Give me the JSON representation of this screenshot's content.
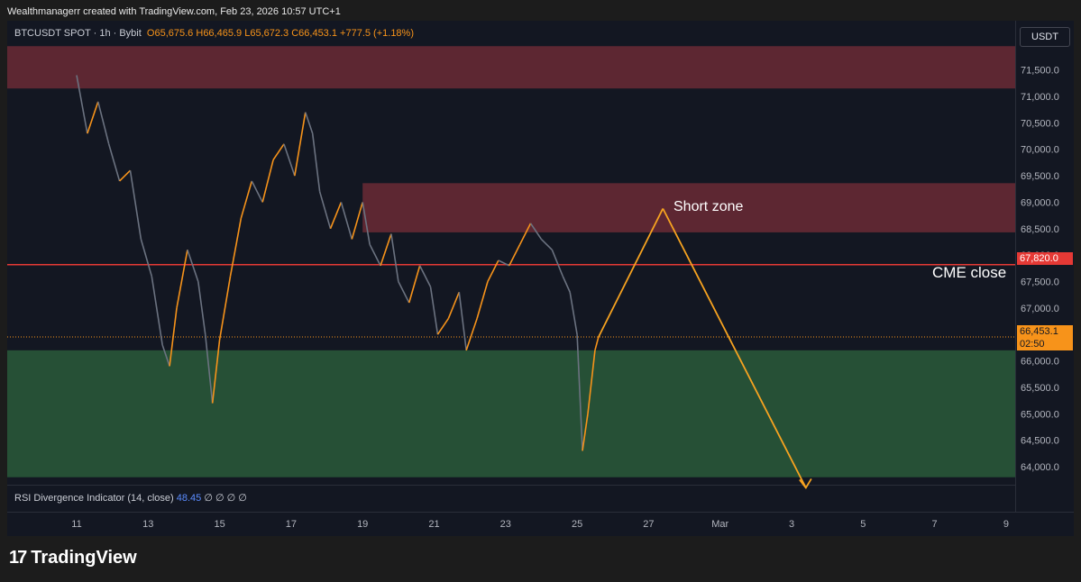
{
  "header": {
    "credit": "Wealthmanagerr created with TradingView.com, Feb 23, 2026 10:57 UTC+1"
  },
  "legend": {
    "symbol": "BTCUSDT SPOT · 1h · Bybit",
    "open": "65,675.6",
    "high": "66,465.9",
    "low": "65,672.3",
    "close": "66,453.1",
    "change": "+777.5 (+1.18%)"
  },
  "indicator": {
    "name": "RSI Divergence Indicator (14, close)",
    "value": "48.45",
    "na": "∅ ∅ ∅ ∅"
  },
  "price_axis": {
    "unit": "USDT"
  },
  "tags": {
    "cme": "67,820.0",
    "last_price": "66,453.1",
    "countdown": "02:50"
  },
  "annotations": {
    "short_zone": "Short zone",
    "cme_close": "CME close"
  },
  "logo": {
    "mark": "17",
    "name": "TradingView"
  },
  "colors": {
    "up": "#f7931a",
    "down": "#6b7280",
    "resistance_zone": "#6b2a35",
    "support_zone": "#2a5a3a",
    "cme_line": "#e53935",
    "projection": "#f7a320"
  },
  "chart_data": {
    "type": "line",
    "title": "BTCUSDT SPOT · 1h · Bybit",
    "ylim": [
      63700,
      71950
    ],
    "y_ticks": [
      64000,
      64500,
      65000,
      65500,
      66000,
      66500,
      67000,
      67500,
      68000,
      68500,
      69000,
      69500,
      70000,
      70500,
      71000,
      71500
    ],
    "x_ticks": [
      "11",
      "13",
      "15",
      "17",
      "19",
      "21",
      "23",
      "25",
      "27",
      "Mar",
      "3",
      "5",
      "7",
      "9"
    ],
    "series": [
      {
        "values": [
          [
            0,
            71400
          ],
          [
            0.3,
            70300
          ],
          [
            0.6,
            70900
          ],
          [
            0.9,
            70100
          ],
          [
            1.2,
            69400
          ],
          [
            1.5,
            69600
          ],
          [
            1.8,
            68300
          ],
          [
            2.1,
            67600
          ],
          [
            2.4,
            66300
          ],
          [
            2.6,
            65900
          ],
          [
            2.8,
            67000
          ],
          [
            3.1,
            68100
          ],
          [
            3.4,
            67500
          ],
          [
            3.6,
            66500
          ],
          [
            3.8,
            65200
          ],
          [
            4.0,
            66400
          ],
          [
            4.3,
            67600
          ],
          [
            4.6,
            68700
          ],
          [
            4.9,
            69400
          ],
          [
            5.2,
            69000
          ],
          [
            5.5,
            69800
          ],
          [
            5.8,
            70100
          ],
          [
            6.1,
            69500
          ],
          [
            6.4,
            70700
          ],
          [
            6.6,
            70300
          ],
          [
            6.8,
            69200
          ],
          [
            7.1,
            68500
          ],
          [
            7.4,
            69000
          ],
          [
            7.7,
            68300
          ],
          [
            8.0,
            69000
          ],
          [
            8.2,
            68200
          ],
          [
            8.5,
            67800
          ],
          [
            8.8,
            68400
          ],
          [
            9.0,
            67500
          ],
          [
            9.3,
            67100
          ],
          [
            9.6,
            67800
          ],
          [
            9.9,
            67400
          ],
          [
            10.1,
            66500
          ],
          [
            10.4,
            66800
          ],
          [
            10.7,
            67300
          ],
          [
            10.9,
            66200
          ],
          [
            11.2,
            66800
          ],
          [
            11.5,
            67500
          ],
          [
            11.8,
            67900
          ],
          [
            12.1,
            67800
          ],
          [
            12.4,
            68200
          ],
          [
            12.7,
            68600
          ],
          [
            13.0,
            68300
          ],
          [
            13.3,
            68100
          ],
          [
            13.6,
            67600
          ],
          [
            13.8,
            67300
          ],
          [
            14.0,
            66500
          ],
          [
            14.15,
            64300
          ],
          [
            14.3,
            65000
          ],
          [
            14.5,
            66200
          ],
          [
            14.6,
            66453
          ]
        ]
      }
    ],
    "zones": [
      {
        "label": "",
        "y_low": 71150,
        "y_high": 71950
      },
      {
        "label": "Short zone",
        "x_start": 8.0,
        "y_low": 68430,
        "y_high": 69360
      },
      {
        "label": "",
        "y_low": 63800,
        "y_high": 66200
      }
    ],
    "hlines": [
      {
        "label": "CME close",
        "y": 67820
      },
      {
        "label": "",
        "y": 66453.1
      }
    ],
    "projection": [
      [
        14.6,
        66453
      ],
      [
        16.4,
        68880
      ],
      [
        20.4,
        63600
      ]
    ]
  }
}
